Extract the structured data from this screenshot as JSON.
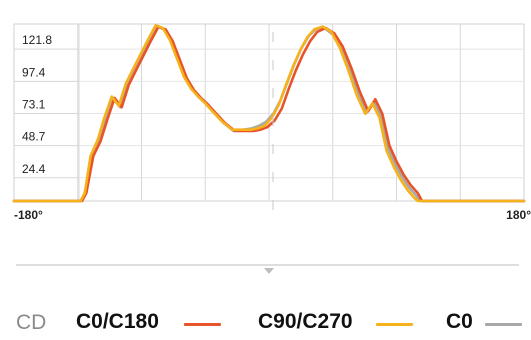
{
  "chart_data": {
    "type": "line",
    "title": "",
    "xlabel": "",
    "ylabel": "",
    "xlim": [
      -180,
      180
    ],
    "ylim": [
      0,
      134
    ],
    "x_ticks": [
      -180,
      180
    ],
    "x_tick_labels": [
      "-180°",
      "180°"
    ],
    "y_ticks": [
      24.4,
      48.7,
      73.1,
      97.4,
      121.8
    ],
    "y_tick_labels": [
      "24.4",
      "48.7",
      "73.1",
      "97.4",
      "121.8"
    ],
    "grid": true,
    "legend_placement": "bottom",
    "legend_prefix": "CD",
    "series": [
      {
        "name": "C0/C180",
        "color": "#e8542a",
        "x": [
          -180,
          -132,
          -129,
          -124,
          -119,
          -114,
          -109,
          -104,
          -99,
          -92,
          -84,
          -78,
          -73,
          -68,
          -63,
          -58,
          -53,
          -48,
          -43,
          -38,
          -31,
          -24,
          -17,
          -11,
          -6,
          -1,
          4,
          9,
          14,
          19,
          24,
          29,
          34,
          40,
          46,
          52,
          58,
          64,
          70,
          75,
          80,
          85,
          90,
          95,
          100,
          105,
          108,
          180
        ],
        "y": [
          0,
          0,
          6,
          34,
          45,
          62,
          78,
          71,
          88,
          103,
          120,
          132,
          130,
          121,
          107,
          93,
          84,
          78,
          73,
          67,
          59,
          53,
          53,
          53,
          54,
          56,
          61,
          70,
          85,
          99,
          111,
          121,
          128,
          131,
          127,
          117,
          101,
          83,
          68,
          77,
          66,
          42,
          30,
          20,
          12,
          6,
          0,
          0
        ]
      },
      {
        "name": "C90/C270",
        "color": "#f6b21b",
        "x": [
          -180,
          -133,
          -130,
          -126,
          -121,
          -116,
          -111,
          -106,
          -101,
          -94,
          -86,
          -80,
          -75,
          -70,
          -65,
          -60,
          -55,
          -50,
          -45,
          -40,
          -33,
          -26,
          -19,
          -13,
          -8,
          -3,
          2,
          7,
          12,
          17,
          22,
          27,
          32,
          38,
          44,
          50,
          56,
          62,
          68,
          73,
          78,
          83,
          88,
          93,
          98,
          102,
          105,
          180
        ],
        "y": [
          0,
          0,
          6,
          34,
          46,
          64,
          79,
          72,
          89,
          104,
          121,
          133,
          131,
          122,
          108,
          94,
          85,
          79,
          74,
          68,
          60,
          54,
          54,
          54,
          55,
          57,
          63,
          73,
          88,
          102,
          114,
          124,
          130,
          132,
          128,
          116,
          99,
          80,
          66,
          74,
          63,
          38,
          26,
          16,
          8,
          3,
          0,
          0
        ]
      },
      {
        "name": "C0",
        "color": "#a8a8a8",
        "x": [
          -180,
          -133,
          -130,
          -125,
          -120,
          -115,
          -110,
          -105,
          -100,
          -93,
          -85,
          -79,
          -74,
          -69,
          -64,
          -59,
          -54,
          -49,
          -44,
          -39,
          -32,
          -25,
          -18,
          -12,
          -7,
          -2,
          3,
          8,
          13,
          18,
          23,
          28,
          33,
          39,
          45,
          51,
          57,
          63,
          69,
          74,
          79,
          84,
          89,
          94,
          99,
          104,
          107,
          180
        ],
        "y": [
          0,
          0,
          6,
          34,
          45,
          63,
          78,
          71,
          88,
          103,
          120,
          132,
          130,
          121,
          107,
          93,
          84,
          78,
          73,
          67,
          59,
          53,
          54,
          55,
          57,
          60,
          66,
          76,
          90,
          104,
          116,
          125,
          130,
          131,
          126,
          115,
          99,
          81,
          67,
          75,
          65,
          40,
          28,
          18,
          10,
          4,
          0,
          0
        ]
      }
    ]
  }
}
